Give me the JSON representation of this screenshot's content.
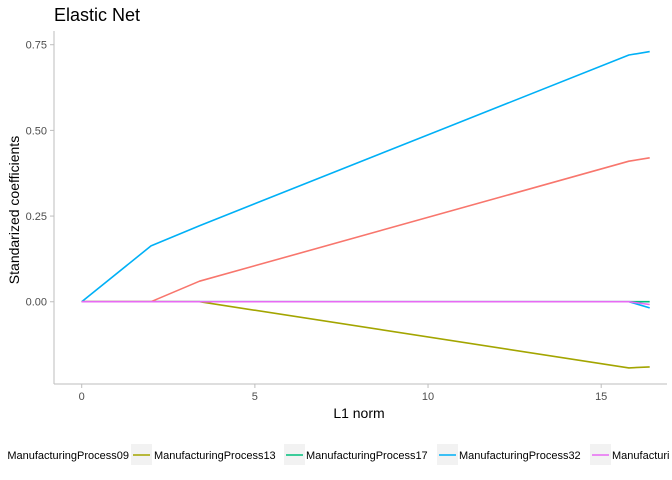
{
  "chart_data": {
    "type": "line",
    "title": "Elastic Net",
    "xlabel": "L1 norm",
    "ylabel": "Standarized coefficients",
    "xlim": [
      -0.8,
      16.9
    ],
    "ylim": [
      -0.24,
      0.79
    ],
    "xticks": [
      0,
      5,
      10,
      15
    ],
    "yticks": [
      0.0,
      0.25,
      0.5,
      0.75
    ],
    "xtick_labels": [
      "0",
      "5",
      "10",
      "15"
    ],
    "ytick_labels": [
      "0.00",
      "0.25",
      "0.50",
      "0.75"
    ],
    "grid": false,
    "legend_position": "bottom",
    "series": [
      {
        "name": "ManufacturingProcess09",
        "color": "#F8766D",
        "x": [
          0,
          2,
          3.4,
          15.8,
          16.4
        ],
        "y": [
          0,
          0,
          0.06,
          0.41,
          0.42
        ]
      },
      {
        "name": "ManufacturingProcess13",
        "color": "#A3A500",
        "x": [
          0,
          2,
          3.4,
          15.8,
          16.4
        ],
        "y": [
          0,
          0,
          0,
          -0.193,
          -0.19
        ]
      },
      {
        "name": "ManufacturingProcess17",
        "color": "#00BF7D",
        "x": [
          0,
          2,
          3.4,
          15.8,
          16.4
        ],
        "y": [
          0,
          0,
          0,
          0,
          0
        ]
      },
      {
        "name": "ManufacturingProcess32",
        "color": "#00B0F6",
        "x": [
          0,
          2,
          3.4,
          15.8,
          16.4
        ],
        "y": [
          0,
          0.163,
          0.222,
          0.72,
          0.73
        ]
      },
      {
        "name": "Manufacturi",
        "color": "#E76BF3",
        "x": [
          0,
          2,
          3.4,
          15.8,
          16.4
        ],
        "y": [
          0,
          0,
          0,
          0,
          -0.008
        ]
      }
    ],
    "extra_line": {
      "color": "#00B0F6",
      "x": [
        15.8,
        16.4
      ],
      "y": [
        0,
        -0.018
      ]
    }
  }
}
